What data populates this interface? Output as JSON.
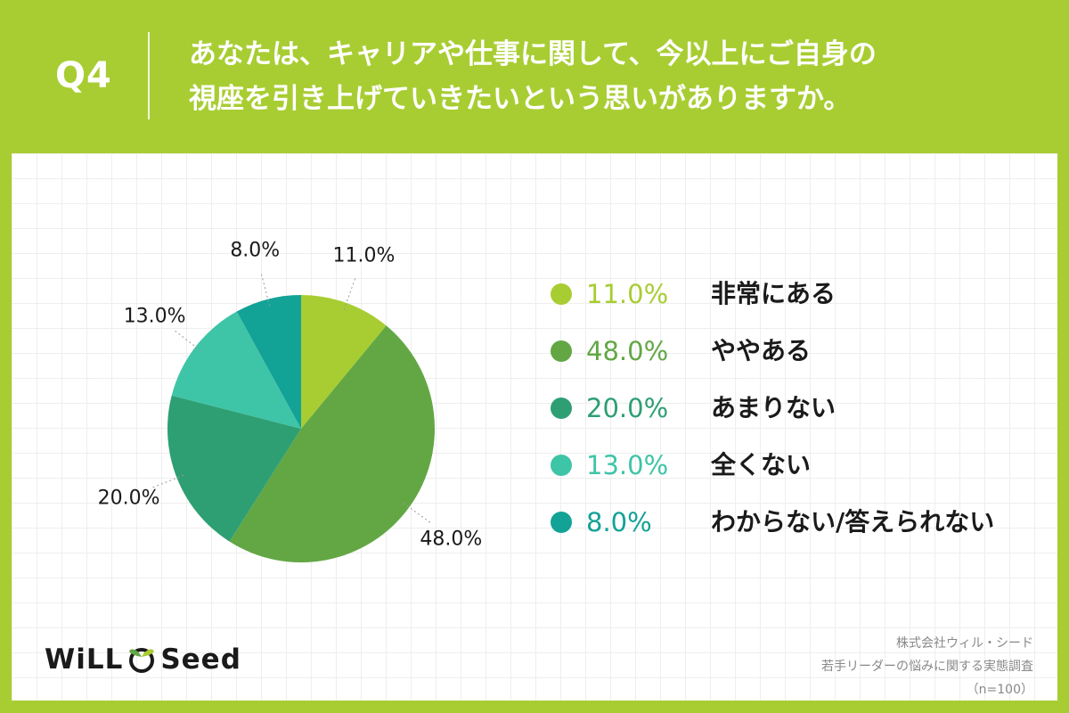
{
  "question": {
    "number": "Q4",
    "line1": "あなたは、キャリアや仕事に関して、今以上にご自身の",
    "line2": "視座を引き上げていきたいという思いがありますか。"
  },
  "chart_data": {
    "type": "pie",
    "slices": [
      {
        "label": "非常にある",
        "value": 11.0,
        "display": "11.0%",
        "color": "#a8cd32"
      },
      {
        "label": "ややある",
        "value": 48.0,
        "display": "48.0%",
        "color": "#62a744"
      },
      {
        "label": "あまりない",
        "value": 20.0,
        "display": "20.0%",
        "color": "#2e9f73"
      },
      {
        "label": "全くない",
        "value": 13.0,
        "display": "13.0%",
        "color": "#3ec4a7"
      },
      {
        "label": "わからない/答えられない",
        "value": 8.0,
        "display": "8.0%",
        "color": "#13a296"
      }
    ]
  },
  "logo": {
    "left": "WiLL",
    "right": "Seed"
  },
  "source": {
    "company": "株式会社ウィル・シード",
    "survey": "若手リーダーの悩みに関する実態調査",
    "sample": "（n=100）"
  }
}
